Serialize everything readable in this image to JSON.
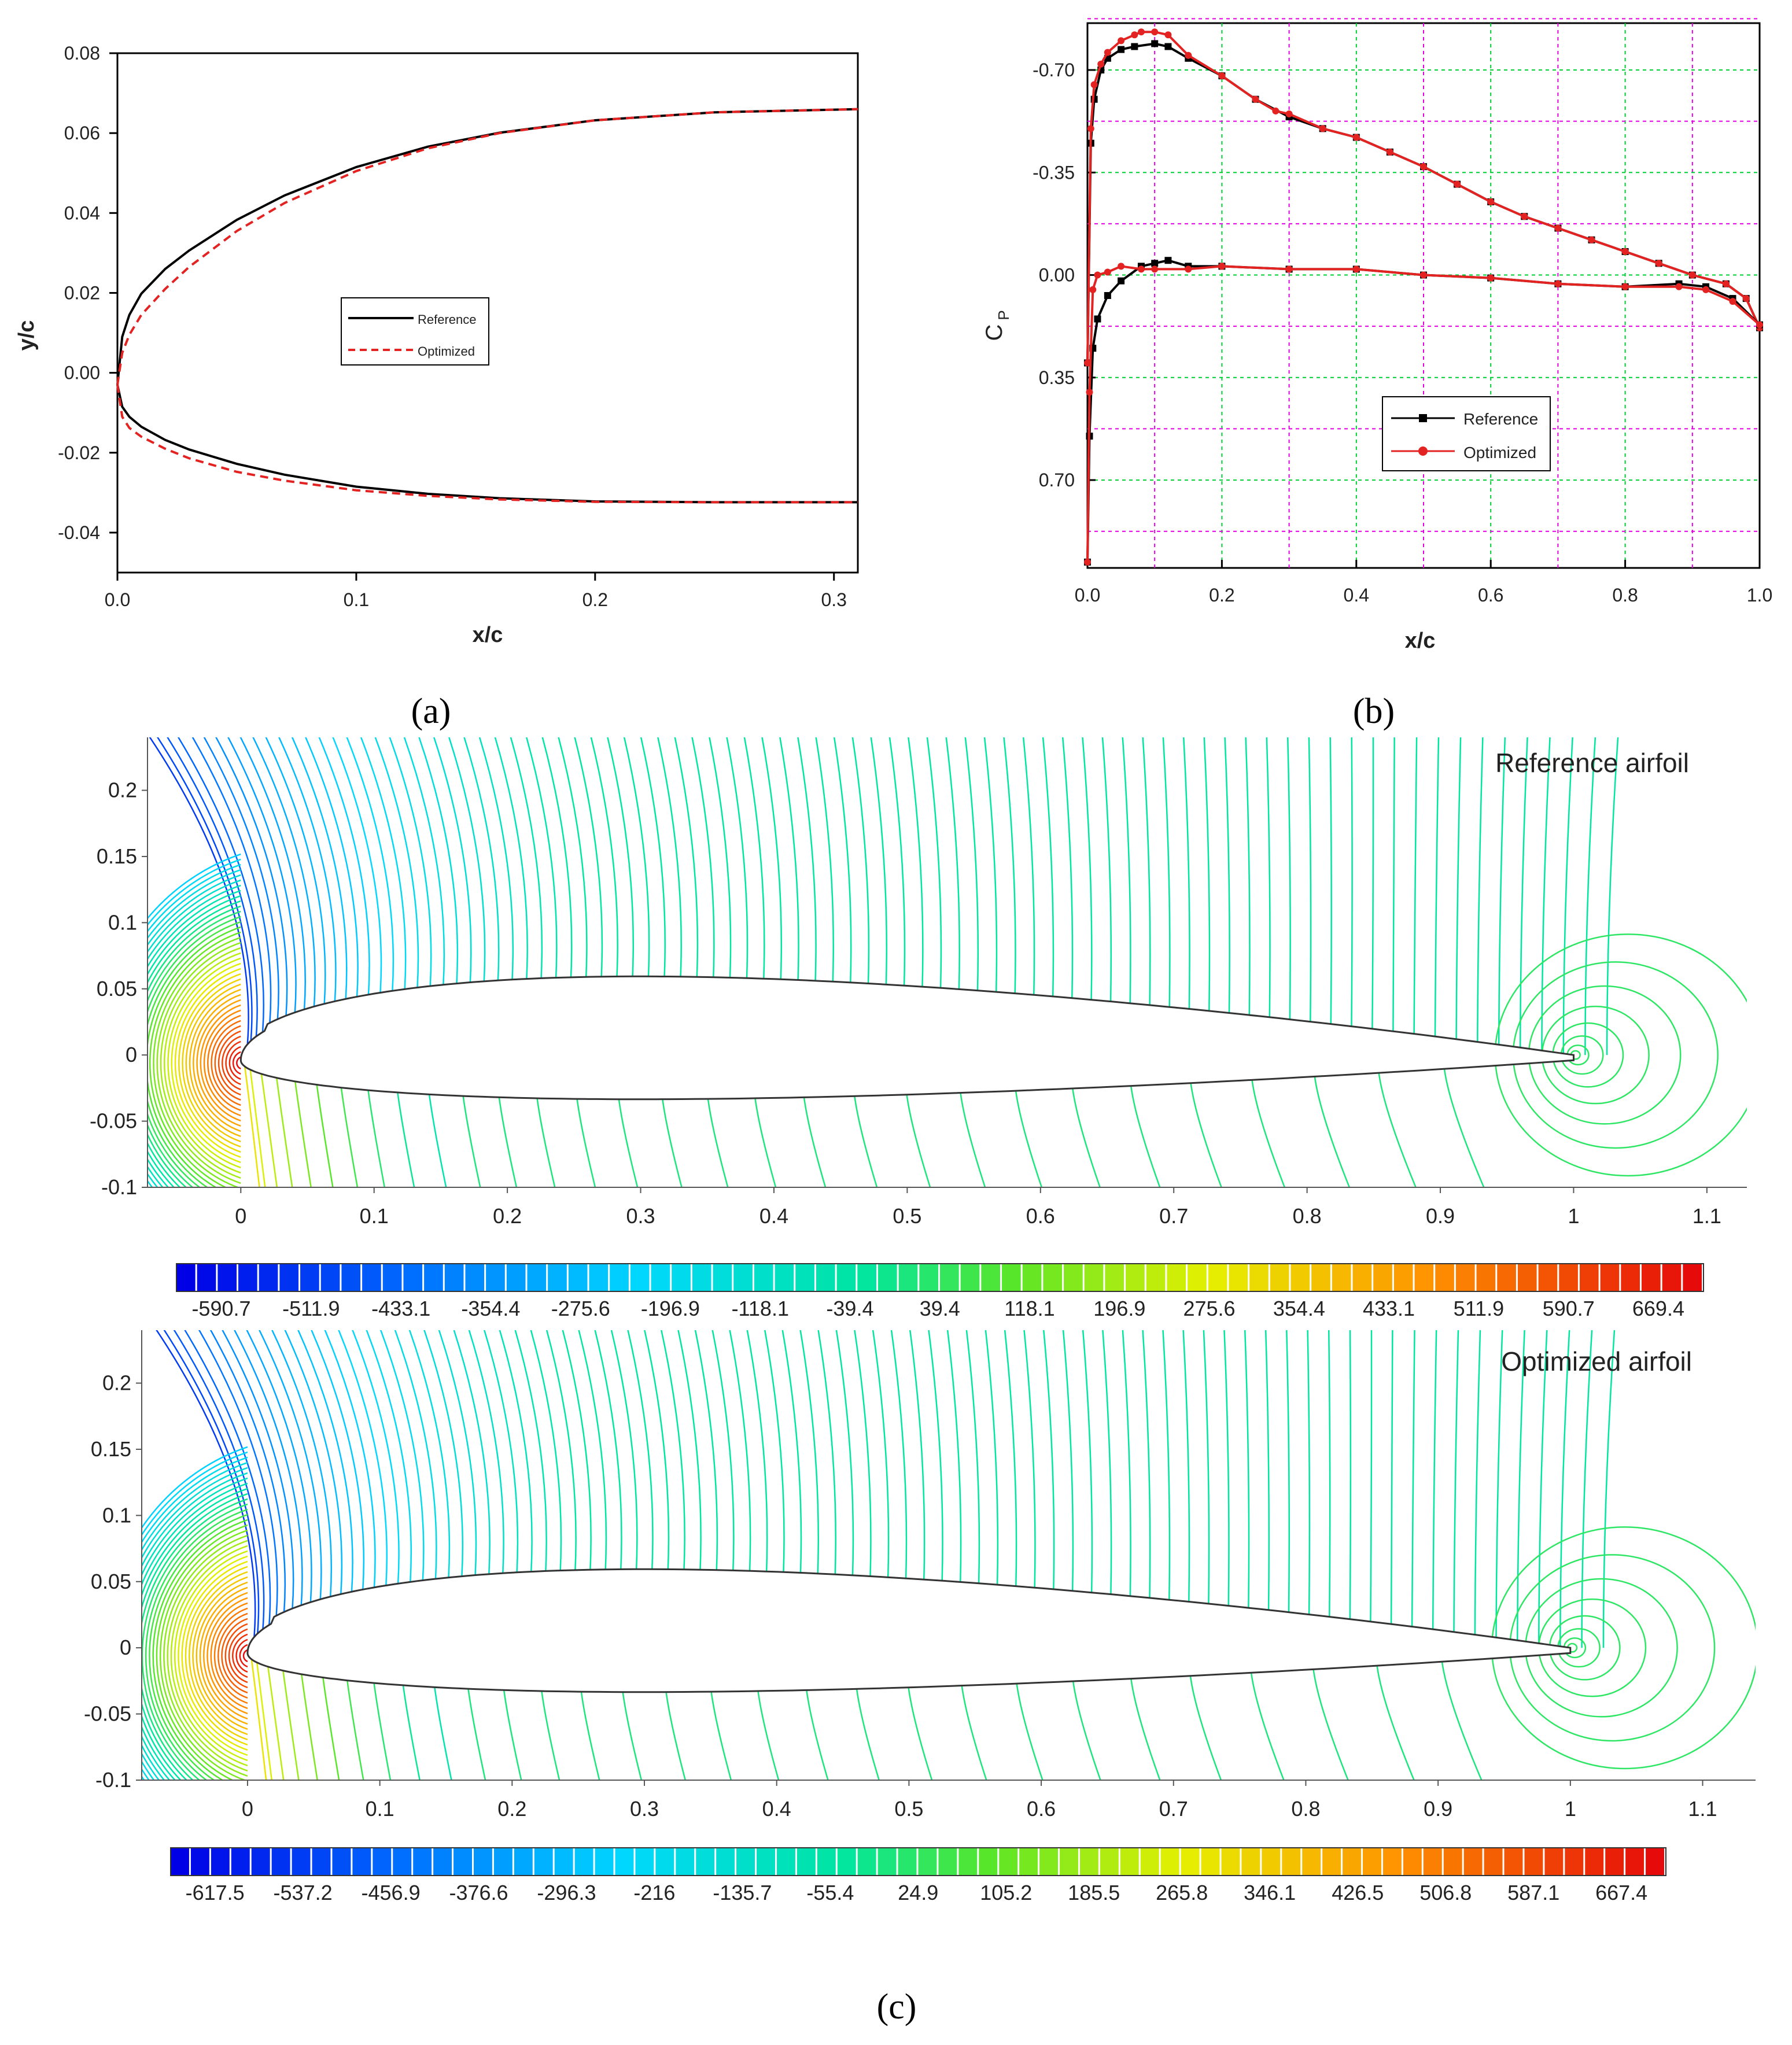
{
  "colors": {
    "reference": "#000000",
    "optimized": "#e32222",
    "grid_green": "#00cc33",
    "grid_magenta": "#e000e0",
    "contour": "#22d6b0",
    "airfoil": "#333333"
  },
  "captions": {
    "a": "(a)",
    "b": "(b)",
    "c": "(c)"
  },
  "chart_data": [
    {
      "id": "a",
      "type": "line",
      "xlabel": "x/c",
      "ylabel": "y/c",
      "xlim": [
        0.0,
        0.31
      ],
      "ylim": [
        -0.05,
        0.08
      ],
      "xticks": [
        "0.0",
        "0.1",
        "0.2",
        "0.3"
      ],
      "xtick_values": [
        0.0,
        0.1,
        0.2,
        0.3
      ],
      "yticks": [
        "-0.04",
        "-0.02",
        "0.00",
        "0.02",
        "0.04",
        "0.06",
        "0.08"
      ],
      "ytick_values": [
        -0.04,
        -0.02,
        0.0,
        0.02,
        0.04,
        0.06,
        0.08
      ],
      "legend": [
        "Reference",
        "Optimized"
      ],
      "legend_position": "center",
      "series": [
        {
          "name": "Reference upper",
          "style": "solid",
          "color": "#000000",
          "x": [
            0.0,
            0.002,
            0.005,
            0.01,
            0.02,
            0.03,
            0.05,
            0.07,
            0.1,
            0.13,
            0.16,
            0.2,
            0.25,
            0.31
          ],
          "y": [
            -0.003,
            0.009,
            0.0145,
            0.0198,
            0.026,
            0.0306,
            0.0383,
            0.0444,
            0.0515,
            0.0566,
            0.0601,
            0.0632,
            0.0652,
            0.066
          ]
        },
        {
          "name": "Optimized upper",
          "style": "dashed",
          "color": "#e32222",
          "x": [
            0.0,
            0.002,
            0.005,
            0.01,
            0.02,
            0.03,
            0.05,
            0.07,
            0.1,
            0.13,
            0.16,
            0.2,
            0.25,
            0.31
          ],
          "y": [
            -0.003,
            0.005,
            0.0095,
            0.0145,
            0.021,
            0.0265,
            0.0355,
            0.0425,
            0.0505,
            0.0562,
            0.06,
            0.0632,
            0.0652,
            0.066
          ]
        },
        {
          "name": "Reference lower",
          "style": "solid",
          "color": "#000000",
          "x": [
            0.0,
            0.002,
            0.005,
            0.01,
            0.02,
            0.03,
            0.05,
            0.07,
            0.1,
            0.13,
            0.16,
            0.2,
            0.25,
            0.31
          ],
          "y": [
            -0.003,
            -0.0085,
            -0.011,
            -0.0135,
            -0.0168,
            -0.0192,
            -0.0228,
            -0.0255,
            -0.0285,
            -0.0303,
            -0.0314,
            -0.0322,
            -0.0324,
            -0.0324
          ]
        },
        {
          "name": "Optimized lower",
          "style": "dashed",
          "color": "#e32222",
          "x": [
            0.0,
            0.002,
            0.005,
            0.01,
            0.02,
            0.03,
            0.05,
            0.07,
            0.1,
            0.13,
            0.16,
            0.2,
            0.25,
            0.31
          ],
          "y": [
            -0.003,
            -0.011,
            -0.0138,
            -0.016,
            -0.019,
            -0.0214,
            -0.0248,
            -0.027,
            -0.0294,
            -0.0308,
            -0.0317,
            -0.0323,
            -0.0324,
            -0.0324
          ]
        }
      ]
    },
    {
      "id": "b",
      "type": "line",
      "xlabel": "x/c",
      "ylabel": "C",
      "ylabel_sub": "P",
      "xlim": [
        0.0,
        1.0
      ],
      "ylim": [
        -0.86,
        1.0
      ],
      "y_inverted": true,
      "grid": true,
      "xticks": [
        "0.0",
        "0.2",
        "0.4",
        "0.6",
        "0.8",
        "1.0"
      ],
      "xtick_values": [
        0.0,
        0.2,
        0.4,
        0.6,
        0.8,
        1.0
      ],
      "yticks": [
        "-0.70",
        "-0.35",
        "0.00",
        "0.35",
        "0.70"
      ],
      "ytick_values": [
        -0.7,
        -0.35,
        0.0,
        0.35,
        0.7
      ],
      "legend": [
        "Reference",
        "Optimized"
      ],
      "legend_position": "lower center",
      "series": [
        {
          "name": "Reference upper",
          "color": "#000000",
          "marker": "square",
          "x": [
            0.0,
            0.005,
            0.01,
            0.02,
            0.03,
            0.05,
            0.07,
            0.1,
            0.12,
            0.15,
            0.2,
            0.25,
            0.3,
            0.35,
            0.4,
            0.45,
            0.5,
            0.55,
            0.6,
            0.65,
            0.7,
            0.75,
            0.8,
            0.85,
            0.9,
            0.95,
            0.98,
            1.0
          ],
          "y": [
            0.3,
            -0.45,
            -0.6,
            -0.7,
            -0.74,
            -0.77,
            -0.78,
            -0.79,
            -0.78,
            -0.74,
            -0.68,
            -0.6,
            -0.54,
            -0.5,
            -0.47,
            -0.42,
            -0.37,
            -0.31,
            -0.25,
            -0.2,
            -0.16,
            -0.12,
            -0.08,
            -0.04,
            0.0,
            0.03,
            0.08,
            0.18
          ]
        },
        {
          "name": "Optimized upper",
          "color": "#e32222",
          "marker": "circle",
          "x": [
            0.0,
            0.005,
            0.01,
            0.02,
            0.03,
            0.05,
            0.07,
            0.08,
            0.1,
            0.12,
            0.15,
            0.2,
            0.25,
            0.28,
            0.3,
            0.35,
            0.4,
            0.45,
            0.5,
            0.55,
            0.6,
            0.65,
            0.7,
            0.75,
            0.8,
            0.85,
            0.9,
            0.95,
            0.98,
            1.0
          ],
          "y": [
            0.3,
            -0.5,
            -0.65,
            -0.72,
            -0.76,
            -0.8,
            -0.82,
            -0.83,
            -0.83,
            -0.82,
            -0.75,
            -0.68,
            -0.6,
            -0.56,
            -0.55,
            -0.5,
            -0.47,
            -0.42,
            -0.37,
            -0.31,
            -0.25,
            -0.2,
            -0.16,
            -0.12,
            -0.08,
            -0.04,
            0.0,
            0.03,
            0.08,
            0.18
          ]
        },
        {
          "name": "Reference lower",
          "color": "#000000",
          "marker": "square",
          "x": [
            0.0,
            0.003,
            0.008,
            0.015,
            0.03,
            0.05,
            0.08,
            0.1,
            0.12,
            0.15,
            0.2,
            0.3,
            0.4,
            0.5,
            0.6,
            0.7,
            0.8,
            0.88,
            0.92,
            0.96,
            1.0
          ],
          "y": [
            0.98,
            0.55,
            0.25,
            0.15,
            0.07,
            0.02,
            -0.03,
            -0.04,
            -0.05,
            -0.03,
            -0.03,
            -0.02,
            -0.02,
            0.0,
            0.01,
            0.03,
            0.04,
            0.03,
            0.04,
            0.08,
            0.17
          ]
        },
        {
          "name": "Optimized lower",
          "color": "#e32222",
          "marker": "circle",
          "x": [
            0.0,
            0.003,
            0.008,
            0.015,
            0.03,
            0.05,
            0.08,
            0.1,
            0.15,
            0.2,
            0.3,
            0.4,
            0.5,
            0.6,
            0.7,
            0.8,
            0.88,
            0.92,
            0.96,
            1.0
          ],
          "y": [
            0.98,
            0.4,
            0.05,
            0.0,
            -0.01,
            -0.03,
            -0.02,
            -0.02,
            -0.02,
            -0.03,
            -0.02,
            -0.02,
            0.0,
            0.01,
            0.03,
            0.04,
            0.04,
            0.05,
            0.09,
            0.17
          ]
        }
      ]
    },
    {
      "id": "c1",
      "type": "contour",
      "title": "Reference airfoil",
      "xlim": [
        -0.07,
        1.13
      ],
      "ylim": [
        -0.1,
        0.24
      ],
      "xticks": [
        "0",
        "0.1",
        "0.2",
        "0.3",
        "0.4",
        "0.5",
        "0.6",
        "0.7",
        "0.8",
        "0.9",
        "1",
        "1.1"
      ],
      "xtick_values": [
        0.0,
        0.1,
        0.2,
        0.3,
        0.4,
        0.5,
        0.6,
        0.7,
        0.8,
        0.9,
        1.0,
        1.1
      ],
      "yticks": [
        "-0.1",
        "-0.05",
        "0",
        "0.05",
        "0.1",
        "0.15",
        "0.2"
      ],
      "ytick_values": [
        -0.1,
        -0.05,
        0.0,
        0.05,
        0.1,
        0.15,
        0.2
      ],
      "colorbar": [
        "-590.7",
        "-511.9",
        "-433.1",
        "-354.4",
        "-275.6",
        "-196.9",
        "-118.1",
        "-39.4",
        "39.4",
        "118.1",
        "196.9",
        "275.6",
        "354.4",
        "433.1",
        "511.9",
        "590.7",
        "669.4"
      ],
      "colorbar_range": [
        -630,
        709
      ]
    },
    {
      "id": "c2",
      "type": "contour",
      "title": "Optimized airfoil",
      "xlim": [
        -0.08,
        1.14
      ],
      "ylim": [
        -0.1,
        0.24
      ],
      "xticks": [
        "0",
        "0.1",
        "0.2",
        "0.3",
        "0.4",
        "0.5",
        "0.6",
        "0.7",
        "0.8",
        "0.9",
        "1",
        "1.1"
      ],
      "xtick_values": [
        0.0,
        0.1,
        0.2,
        0.3,
        0.4,
        0.5,
        0.6,
        0.7,
        0.8,
        0.9,
        1.0,
        1.1
      ],
      "yticks": [
        "-0.1",
        "-0.05",
        "0",
        "0.05",
        "0.1",
        "0.15",
        "0.2"
      ],
      "ytick_values": [
        -0.1,
        -0.05,
        0.0,
        0.05,
        0.1,
        0.15,
        0.2
      ],
      "colorbar": [
        "-617.5",
        "-537.2",
        "-456.9",
        "-376.6",
        "-296.3",
        "-216",
        "-135.7",
        "-55.4",
        "24.9",
        "105.2",
        "185.5",
        "265.8",
        "346.1",
        "426.5",
        "506.8",
        "587.1",
        "667.4"
      ],
      "colorbar_range": [
        -658,
        708
      ]
    }
  ]
}
